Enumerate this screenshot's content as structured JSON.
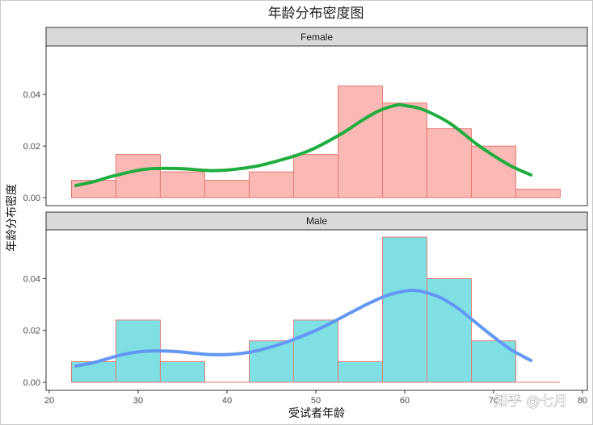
{
  "watermark": "知乎 @七月",
  "chart_data": {
    "type": "bar",
    "title": "年龄分布密度图",
    "xlabel": "受试者年龄",
    "ylabel": "年龄分布密度",
    "xlim": [
      19.64,
      80.55
    ],
    "ylim": [
      -0.0031,
      0.0588
    ],
    "x_ticks": [
      20,
      30,
      40,
      50,
      60,
      70,
      80
    ],
    "y_ticks": [
      0,
      0.02,
      0.04
    ],
    "y_tick_labels": [
      "0.00",
      "0.02",
      "0.04"
    ],
    "grid": false,
    "bin_edges": [
      22.5,
      27.5,
      32.5,
      37.5,
      42.5,
      47.5,
      52.5,
      57.5,
      62.5,
      67.5,
      72.5,
      77.5
    ],
    "panels": [
      {
        "label": "Female",
        "bar_fill": "#fbb9b5",
        "bar_border": "#e47a72",
        "line_color": "#1fad3f",
        "values": [
          0.0067,
          0.0167,
          0.01,
          0.0067,
          0.01,
          0.0167,
          0.0433,
          0.0367,
          0.0267,
          0.02,
          0.0033
        ],
        "density": {
          "x": [
            23,
            25,
            27,
            30,
            32,
            35,
            38,
            40,
            43,
            45,
            48,
            50,
            53,
            55,
            57,
            59,
            60,
            62,
            65,
            68,
            70,
            72,
            74.2
          ],
          "y": [
            0.0047,
            0.0062,
            0.0082,
            0.0106,
            0.0113,
            0.0112,
            0.0105,
            0.0107,
            0.012,
            0.0136,
            0.0166,
            0.0194,
            0.025,
            0.0295,
            0.0335,
            0.0358,
            0.0357,
            0.0342,
            0.029,
            0.021,
            0.0163,
            0.0122,
            0.0088
          ]
        }
      },
      {
        "label": "Male",
        "bar_fill": "#80dfe2",
        "bar_border": "#e47a72",
        "line_color": "#6298f3",
        "values": [
          0.008,
          0.024,
          0.008,
          0,
          0.016,
          0.024,
          0.008,
          0.056,
          0.04,
          0.016,
          0
        ],
        "density": {
          "x": [
            23,
            25,
            28,
            30,
            32,
            34,
            36,
            38,
            40,
            42,
            44,
            46,
            48,
            50,
            52,
            54,
            56,
            58,
            60,
            61,
            62,
            64,
            66,
            68,
            70,
            72,
            74.2
          ],
          "y": [
            0.0063,
            0.0076,
            0.0105,
            0.0117,
            0.0121,
            0.0119,
            0.0113,
            0.0107,
            0.0107,
            0.0113,
            0.0127,
            0.0147,
            0.0172,
            0.02,
            0.0234,
            0.027,
            0.0305,
            0.0335,
            0.0352,
            0.0354,
            0.035,
            0.0327,
            0.0285,
            0.023,
            0.0175,
            0.0125,
            0.0084
          ]
        }
      }
    ]
  }
}
